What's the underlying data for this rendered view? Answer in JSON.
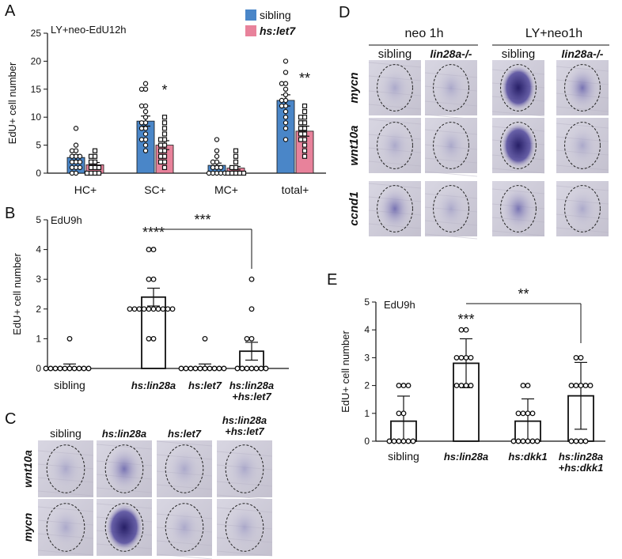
{
  "panels": {
    "A": "A",
    "B": "B",
    "C": "C",
    "D": "D",
    "E": "E"
  },
  "chart_data": [
    {
      "panel": "A",
      "type": "bar",
      "title": "LY+neo-EdU12h",
      "ylabel": "EdU+ cell number",
      "xlabel": "",
      "ylim": [
        0,
        25
      ],
      "yticks": [
        0,
        5,
        10,
        15,
        20,
        25
      ],
      "categories": [
        "HC+",
        "SC+",
        "MC+",
        "total+"
      ],
      "legend": {
        "placement": "top-right",
        "entries": [
          "sibling",
          "hs:let7"
        ]
      },
      "series": [
        {
          "name": "sibling",
          "color": "#4a86c8",
          "values": [
            2.8,
            9.3,
            1.4,
            13.0
          ],
          "errors": [
            0.5,
            0.9,
            0.4,
            1.0
          ],
          "points": [
            [
              0,
              0,
              1,
              1,
              1,
              2,
              2,
              2,
              3,
              3,
              3,
              4,
              4,
              5,
              8
            ],
            [
              4,
              5,
              6,
              6,
              7,
              8,
              8,
              9,
              9,
              10,
              11,
              12,
              12,
              15,
              15,
              16
            ],
            [
              0,
              0,
              0,
              0,
              0,
              1,
              1,
              1,
              2,
              2,
              3,
              4,
              6
            ],
            [
              6,
              8,
              9,
              10,
              11,
              12,
              12,
              13,
              13,
              14,
              15,
              16,
              16,
              18,
              20
            ]
          ]
        },
        {
          "name": "hs:let7",
          "color": "#e8829b",
          "values": [
            1.5,
            5.0,
            0.9,
            7.5
          ],
          "errors": [
            0.4,
            0.8,
            0.3,
            0.9
          ],
          "points": [
            [
              0,
              0,
              0,
              0,
              1,
              1,
              1,
              2,
              2,
              3,
              3,
              4
            ],
            [
              1,
              2,
              2,
              3,
              3,
              4,
              4,
              5,
              5,
              6,
              6,
              7,
              8,
              9,
              10
            ],
            [
              0,
              0,
              0,
              0,
              0,
              1,
              1,
              2,
              3,
              4
            ],
            [
              3,
              4,
              5,
              6,
              6,
              7,
              7,
              8,
              8,
              9,
              9,
              10,
              10,
              11,
              12
            ]
          ]
        }
      ],
      "significance": [
        {
          "category": "SC+",
          "label": "*"
        },
        {
          "category": "total+",
          "label": "**"
        }
      ]
    },
    {
      "panel": "B",
      "type": "bar",
      "title": "EdU9h",
      "ylabel": "EdU+ cell number",
      "ylim": [
        0,
        5
      ],
      "yticks": [
        0,
        1,
        2,
        3,
        4,
        5
      ],
      "categories": [
        "sibling",
        "hs:lin28a",
        "hs:let7",
        "hs:lin28a +hs:let7"
      ],
      "series": [
        {
          "values": [
            0.03,
            2.4,
            0.03,
            0.58
          ],
          "errors": [
            0.12,
            0.3,
            0.12,
            0.3
          ],
          "points": [
            [
              0,
              0,
              0,
              0,
              0,
              0,
              0,
              0,
              0,
              0,
              1
            ],
            [
              1,
              1,
              2,
              2,
              2,
              2,
              2,
              2,
              2,
              2,
              2,
              2,
              3,
              3,
              4,
              4
            ],
            [
              0,
              0,
              0,
              0,
              0,
              0,
              0,
              0,
              0,
              0,
              1
            ],
            [
              0,
              0,
              0,
              0,
              0,
              0,
              0,
              1,
              1,
              2,
              3
            ]
          ]
        }
      ],
      "significance": [
        {
          "category": "hs:lin28a",
          "label": "****"
        },
        {
          "bracket": [
            "hs:lin28a",
            "hs:lin28a +hs:let7"
          ],
          "label": "***"
        }
      ]
    },
    {
      "panel": "E",
      "type": "bar",
      "title": "EdU9h",
      "ylabel": "EdU+ cell number",
      "ylim": [
        0,
        5
      ],
      "yticks": [
        0,
        1,
        2,
        3,
        4,
        5
      ],
      "categories": [
        "sibling",
        "hs:lin28a",
        "hs:dkk1",
        "hs:lin28a +hs:dkk1"
      ],
      "series": [
        {
          "values": [
            0.72,
            2.8,
            0.72,
            1.63
          ],
          "errors": [
            0.9,
            0.88,
            0.8,
            1.2
          ],
          "points": [
            [
              0,
              0,
              0,
              0,
              0,
              0,
              1,
              1,
              2,
              2,
              2
            ],
            [
              2,
              2,
              2,
              2,
              3,
              3,
              3,
              3,
              4,
              4
            ],
            [
              0,
              0,
              0,
              0,
              0,
              0,
              1,
              1,
              1,
              1,
              2,
              2
            ],
            [
              0,
              0,
              0,
              0,
              2,
              2,
              2,
              2,
              2,
              3,
              3
            ]
          ]
        }
      ],
      "significance": [
        {
          "category": "hs:lin28a",
          "label": "***"
        },
        {
          "bracket": [
            "hs:lin28a",
            "hs:lin28a +hs:dkk1"
          ],
          "label": "**"
        }
      ]
    }
  ],
  "panel_c": {
    "columns": [
      "sibling",
      "hs:lin28a",
      "hs:let7",
      "hs:lin28a +hs:let7"
    ],
    "rows": [
      "wnt10a",
      "mycn"
    ]
  },
  "panel_d": {
    "groups": [
      "neo 1h",
      "LY+neo1h"
    ],
    "columns": [
      "sibling",
      "lin28a-/-",
      "sibling",
      "lin28a-/-"
    ],
    "rows": [
      "mycn",
      "wnt10a",
      "ccnd1"
    ]
  }
}
